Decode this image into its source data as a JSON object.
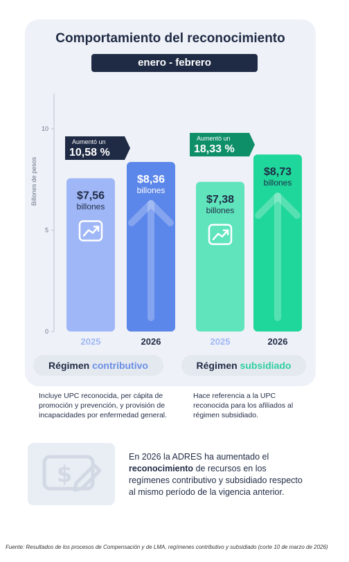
{
  "header": {
    "title": "Comportamiento del reconocimiento",
    "period": "enero - febrero"
  },
  "chart_data": {
    "type": "bar",
    "ylabel": "Billones de pesos",
    "ylim": [
      0,
      12
    ],
    "yticks": [
      0,
      5,
      10
    ],
    "grid": false,
    "bars": [
      {
        "category": "2025",
        "group": "contributivo",
        "value": 7.56,
        "label": "$7,56",
        "unit": "billones",
        "color": "#9fb7f6",
        "label_color": "#1f2a44"
      },
      {
        "category": "2026",
        "group": "contributivo",
        "value": 8.36,
        "label": "$8,36",
        "unit": "billones",
        "color": "#5b86ea",
        "label_color": "#ffffff"
      },
      {
        "category": "2025",
        "group": "subsidiado",
        "value": 7.38,
        "label": "$7,38",
        "unit": "billones",
        "color": "#5fe4bc",
        "label_color": "#1f2a44"
      },
      {
        "category": "2026",
        "group": "subsidiado",
        "value": 8.73,
        "label": "$8,73",
        "unit": "billones",
        "color": "#1fd79a",
        "label_color": "#1f2a44"
      }
    ],
    "annotations": [
      {
        "group": "contributivo",
        "prefix": "Aumentó un",
        "value": "10,58 %",
        "color": "#1f2a44"
      },
      {
        "group": "subsidiado",
        "prefix": "Aumentó un",
        "value": "18,33 %",
        "color": "#0f8f67"
      }
    ],
    "groups": [
      {
        "prefix": "Régimen ",
        "accent": "contributivo",
        "accent_color": "#6a8fe6"
      },
      {
        "prefix": "Régimen ",
        "accent": "subsidiado",
        "accent_color": "#2fd0a0"
      }
    ],
    "year_label_colors": {
      "2025": "#9fb7f6",
      "2026": "#1f2a44"
    }
  },
  "descriptions": {
    "contributivo": "Incluye UPC reconocida, per cápita de promoción y prevención, y provisión de incapacidades por enfermedad general.",
    "subsidiado": "Hace referencia a la UPC reconocida para los afiliados al régimen subsidiado."
  },
  "summary": {
    "part1": "En 2026 la ADRES ha aumentado el ",
    "bold": "reconocimiento",
    "part2": " de recursos en los regímenes contributivo y subsidiado respecto al mismo período de la vigencia anterior."
  },
  "source": "Fuente: Resultados de los procesos de Compensación y de LMA, regímenes contributivo y subsidiado (corte 10 de marzo de 2026)",
  "icons": [
    "chart-up-icon",
    "arrow-up-icon",
    "money-card-icon"
  ]
}
